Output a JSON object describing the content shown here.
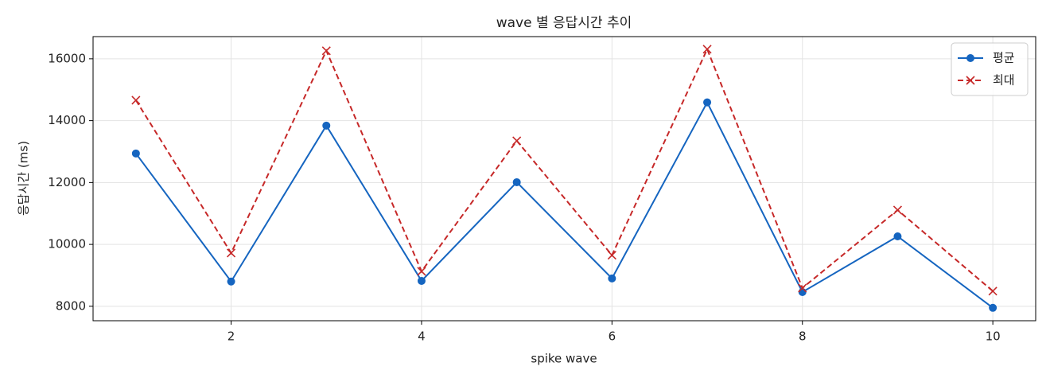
{
  "chart_data": {
    "type": "line",
    "title": "wave 별 응답시간 추이",
    "xlabel": "spike wave",
    "ylabel": "응답시간 (ms)",
    "x": [
      1,
      2,
      3,
      4,
      5,
      6,
      7,
      8,
      9,
      10
    ],
    "series": [
      {
        "name": "평균",
        "color": "#1565c0",
        "marker": "o",
        "linestyle": "solid",
        "values": [
          12940,
          8800,
          13840,
          8820,
          12010,
          8900,
          14590,
          8460,
          10260,
          7950
        ]
      },
      {
        "name": "최대",
        "color": "#c62828",
        "marker": "x",
        "linestyle": "dashed",
        "values": [
          14660,
          9720,
          16260,
          9130,
          13350,
          9650,
          16310,
          8590,
          11110,
          8490
        ]
      }
    ],
    "xlim": [
      0.55,
      10.45
    ],
    "xticks": [
      2,
      4,
      6,
      8,
      10
    ],
    "ylim": [
      7533,
      16717
    ],
    "yticks": [
      8000,
      10000,
      12000,
      14000,
      16000
    ],
    "grid": true,
    "legend": "upper right"
  }
}
